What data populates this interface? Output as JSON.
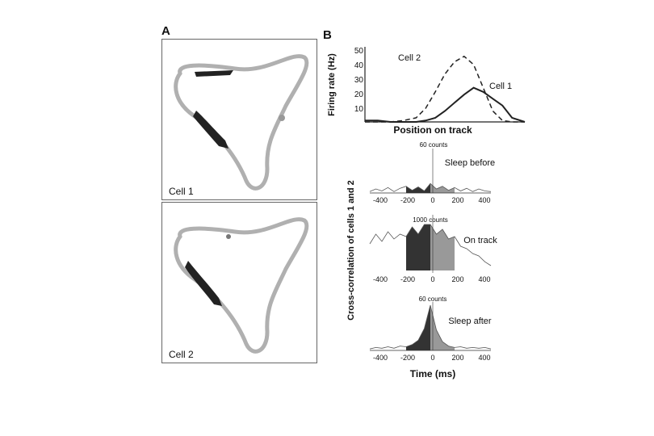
{
  "figure": {
    "panel_a_label": "A",
    "panel_b_label": "B",
    "cells": [
      {
        "label": "Cell 1"
      },
      {
        "label": "Cell 2"
      }
    ]
  },
  "firing_rate_plot": {
    "ylabel": "Firing rate (Hz)",
    "xlabel": "Position on track",
    "ytick_labels": [
      "50",
      "40",
      "30",
      "20",
      "10"
    ],
    "series_labels": [
      "Cell 2",
      "Cell 1"
    ]
  },
  "xcorr": {
    "ylabel": "Cross-correlation of cells 1 and 2",
    "xlabel": "Time (ms)",
    "panels": [
      {
        "title": "Sleep before",
        "scale_label": "60 counts"
      },
      {
        "title": "On track",
        "scale_label": "1000 counts"
      },
      {
        "title": "Sleep after",
        "scale_label": "60 counts"
      }
    ],
    "xtick_labels": [
      "-400",
      "-200",
      "0",
      "200",
      "400"
    ]
  },
  "chart_data": [
    {
      "type": "line",
      "title": "",
      "xlabel": "Position on track",
      "ylabel": "Firing rate (Hz)",
      "ylim": [
        0,
        55
      ],
      "x": [
        0,
        0.08,
        0.16,
        0.24,
        0.32,
        0.38,
        0.44,
        0.5,
        0.56,
        0.62,
        0.68,
        0.74,
        0.8,
        0.86,
        0.92,
        1.0
      ],
      "series": [
        {
          "name": "Cell 2",
          "style": "dashed",
          "values": [
            0,
            0,
            0,
            1,
            3,
            10,
            22,
            35,
            44,
            48,
            42,
            25,
            8,
            1,
            0,
            0
          ]
        },
        {
          "name": "Cell 1",
          "style": "solid",
          "values": [
            1,
            1,
            0,
            0,
            0,
            1,
            3,
            8,
            14,
            20,
            25,
            22,
            17,
            12,
            3,
            0
          ]
        }
      ]
    },
    {
      "type": "area",
      "title": "Sleep before",
      "xlabel": "Time (ms)",
      "ylabel": "counts",
      "xlim": [
        -500,
        500
      ],
      "x": [
        -500,
        -450,
        -400,
        -350,
        -300,
        -250,
        -200,
        -150,
        -100,
        -50,
        0,
        50,
        100,
        150,
        200,
        250,
        300,
        350,
        400,
        450,
        500
      ],
      "values": [
        2,
        6,
        3,
        8,
        2,
        7,
        10,
        4,
        9,
        3,
        14,
        6,
        10,
        4,
        8,
        3,
        7,
        2,
        6,
        3,
        2
      ]
    },
    {
      "type": "area",
      "title": "On track",
      "xlabel": "Time (ms)",
      "ylabel": "counts",
      "xlim": [
        -500,
        500
      ],
      "x": [
        -500,
        -450,
        -400,
        -350,
        -300,
        -250,
        -200,
        -150,
        -100,
        -50,
        0,
        50,
        100,
        150,
        200,
        250,
        300,
        350,
        400,
        450,
        500
      ],
      "values": [
        550,
        750,
        600,
        800,
        650,
        750,
        700,
        900,
        750,
        950,
        950,
        750,
        850,
        650,
        700,
        500,
        450,
        350,
        300,
        180,
        100
      ]
    },
    {
      "type": "area",
      "title": "Sleep after",
      "xlabel": "Time (ms)",
      "ylabel": "counts",
      "xlim": [
        -500,
        500
      ],
      "x": [
        -500,
        -450,
        -400,
        -350,
        -300,
        -250,
        -200,
        -150,
        -100,
        -50,
        0,
        50,
        100,
        150,
        200,
        250,
        300,
        350,
        400,
        450,
        500
      ],
      "values": [
        2,
        4,
        3,
        5,
        3,
        6,
        5,
        8,
        14,
        30,
        62,
        28,
        12,
        6,
        4,
        5,
        3,
        4,
        3,
        4,
        2
      ]
    }
  ]
}
